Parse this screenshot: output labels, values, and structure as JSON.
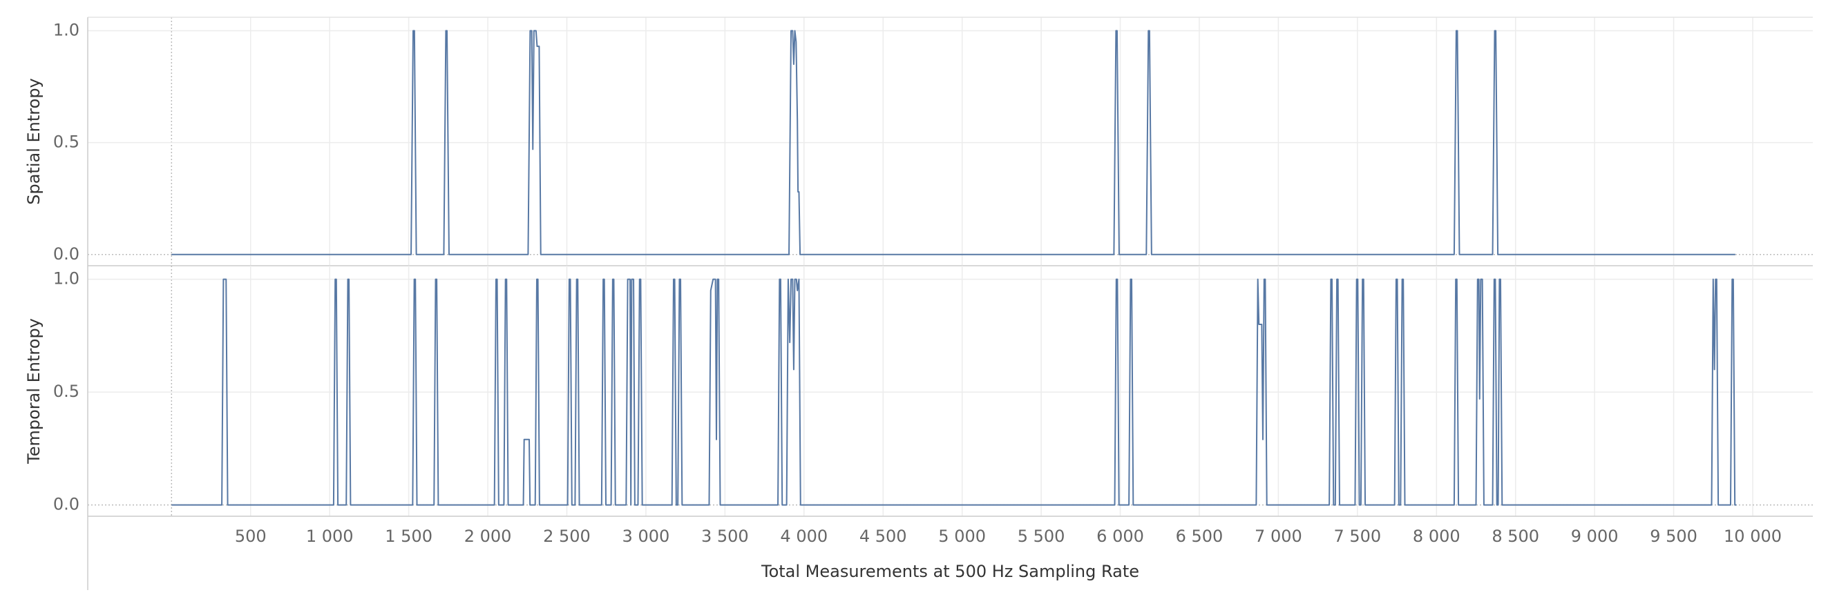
{
  "chart_data": [
    {
      "type": "line",
      "ylabel": "Spatial Entropy",
      "x": [
        0,
        1515,
        1528,
        1536,
        1548,
        1722,
        1735,
        1742,
        1755,
        2255,
        2268,
        2278,
        2285,
        2292,
        2305,
        2312,
        2325,
        2335,
        3905,
        3918,
        3928,
        3935,
        3942,
        3950,
        3958,
        3962,
        3968,
        3975,
        5960,
        5973,
        5980,
        5993,
        6165,
        6178,
        6185,
        6198,
        8112,
        8125,
        8132,
        8145,
        8355,
        8368,
        8375,
        8388,
        9890
      ],
      "series": [
        {
          "color": "#5778a4",
          "values": [
            0,
            0,
            1,
            1,
            0,
            0,
            1,
            1,
            0,
            0,
            1,
            1,
            0.47,
            1,
            1,
            0.93,
            0.93,
            0,
            0,
            1,
            1,
            0.85,
            1,
            0.95,
            0.6,
            0.28,
            0.28,
            0,
            0,
            1,
            1,
            0,
            0,
            1,
            1,
            0,
            0,
            1,
            1,
            0,
            0,
            1,
            1,
            0,
            0
          ]
        }
      ],
      "xlim": [
        -530,
        10380
      ],
      "ylim": [
        -0.05,
        1.06
      ],
      "yticks": [
        {
          "value": 0,
          "label": "0.0"
        },
        0.5,
        {
          "value": 1,
          "label": "1.0"
        }
      ],
      "grid": true
    },
    {
      "type": "line",
      "ylabel": "Temporal Entropy",
      "xlabel": "Total Measurements at 500 Hz Sampling Rate",
      "x": [
        0,
        318,
        328,
        345,
        355,
        1025,
        1035,
        1042,
        1052,
        1105,
        1115,
        1122,
        1132,
        1525,
        1535,
        1542,
        1552,
        1660,
        1670,
        1677,
        1687,
        2042,
        2052,
        2059,
        2069,
        2102,
        2112,
        2119,
        2129,
        2225,
        2230,
        2262,
        2267,
        2300,
        2310,
        2317,
        2327,
        2505,
        2515,
        2522,
        2532,
        2552,
        2562,
        2569,
        2579,
        2720,
        2730,
        2737,
        2747,
        2780,
        2790,
        2797,
        2807,
        2875,
        2885,
        2900,
        2905,
        2910,
        2922,
        2930,
        2950,
        2960,
        2967,
        2977,
        3165,
        3175,
        3182,
        3192,
        3202,
        3212,
        3219,
        3229,
        3400,
        3410,
        3425,
        3440,
        3446,
        3452,
        3460,
        3470,
        3835,
        3845,
        3852,
        3862,
        3890,
        3900,
        3910,
        3918,
        3928,
        3935,
        3942,
        3952,
        3958,
        3968,
        3978,
        5965,
        5975,
        5982,
        5992,
        6055,
        6065,
        6072,
        6082,
        6860,
        6870,
        6877,
        6895,
        6902,
        6910,
        6917,
        6927,
        7322,
        7332,
        7339,
        7349,
        7360,
        7370,
        7377,
        7387,
        7485,
        7495,
        7502,
        7512,
        7522,
        7532,
        7539,
        7549,
        7735,
        7745,
        7752,
        7762,
        7773,
        7783,
        7790,
        7800,
        8112,
        8122,
        8129,
        8139,
        8250,
        8260,
        8268,
        8273,
        8280,
        8290,
        8300,
        8355,
        8365,
        8372,
        8382,
        8390,
        8398,
        8405,
        8415,
        9740,
        9750,
        9758,
        9765,
        9772,
        9782,
        9860,
        9870,
        9877,
        9887,
        9897
      ],
      "series": [
        {
          "color": "#5778a4",
          "values": [
            0,
            0,
            1,
            1,
            0,
            0,
            1,
            1,
            0,
            0,
            1,
            1,
            0,
            0,
            1,
            1,
            0,
            0,
            1,
            1,
            0,
            0,
            1,
            1,
            0,
            0,
            1,
            1,
            0,
            0,
            0.29,
            0.29,
            0,
            0,
            1,
            1,
            0,
            0,
            1,
            1,
            0,
            0,
            1,
            1,
            0,
            0,
            1,
            1,
            0,
            0,
            1,
            1,
            0,
            0,
            1,
            1,
            0,
            1,
            1,
            0,
            0,
            1,
            1,
            0,
            0,
            1,
            1,
            0,
            0,
            1,
            1,
            0,
            0,
            0.95,
            1,
            1,
            0.29,
            1,
            1,
            0,
            0,
            1,
            1,
            0,
            0,
            1,
            0.72,
            1,
            1,
            0.6,
            1,
            1,
            0.95,
            1,
            0,
            0,
            1,
            1,
            0,
            0,
            1,
            1,
            0,
            0,
            1,
            0.8,
            0.8,
            0.29,
            1,
            1,
            0,
            0,
            1,
            1,
            0,
            0,
            1,
            1,
            0,
            0,
            1,
            1,
            0,
            0,
            1,
            1,
            0,
            0,
            1,
            1,
            0,
            0,
            1,
            1,
            0,
            0,
            1,
            1,
            0,
            0,
            1,
            1,
            0.47,
            1,
            1,
            0,
            0,
            1,
            1,
            0,
            0,
            1,
            1,
            0,
            0,
            1,
            0.6,
            1,
            1,
            0,
            0,
            1,
            1,
            0,
            0
          ]
        }
      ],
      "xlim": [
        -530,
        10380
      ],
      "ylim": [
        -0.05,
        1.06
      ],
      "xticks": [
        500,
        {
          "value": 1000,
          "label": "1 000"
        },
        {
          "value": 1500,
          "label": "1 500"
        },
        {
          "value": 2000,
          "label": "2 000"
        },
        {
          "value": 2500,
          "label": "2 500"
        },
        {
          "value": 3000,
          "label": "3 000"
        },
        {
          "value": 3500,
          "label": "3 500"
        },
        {
          "value": 4000,
          "label": "4 000"
        },
        {
          "value": 4500,
          "label": "4 500"
        },
        {
          "value": 5000,
          "label": "5 000"
        },
        {
          "value": 5500,
          "label": "5 500"
        },
        {
          "value": 6000,
          "label": "6 000"
        },
        {
          "value": 6500,
          "label": "6 500"
        },
        {
          "value": 7000,
          "label": "7 000"
        },
        {
          "value": 7500,
          "label": "7 500"
        },
        {
          "value": 8000,
          "label": "8 000"
        },
        {
          "value": 8500,
          "label": "8 500"
        },
        {
          "value": 9000,
          "label": "9 000"
        },
        {
          "value": 9500,
          "label": "9 500"
        },
        {
          "value": 10000,
          "label": "10 000"
        }
      ],
      "yticks": [
        {
          "value": 0,
          "label": "0.0"
        },
        0.5,
        {
          "value": 1,
          "label": "1.0"
        }
      ],
      "grid": true
    }
  ]
}
